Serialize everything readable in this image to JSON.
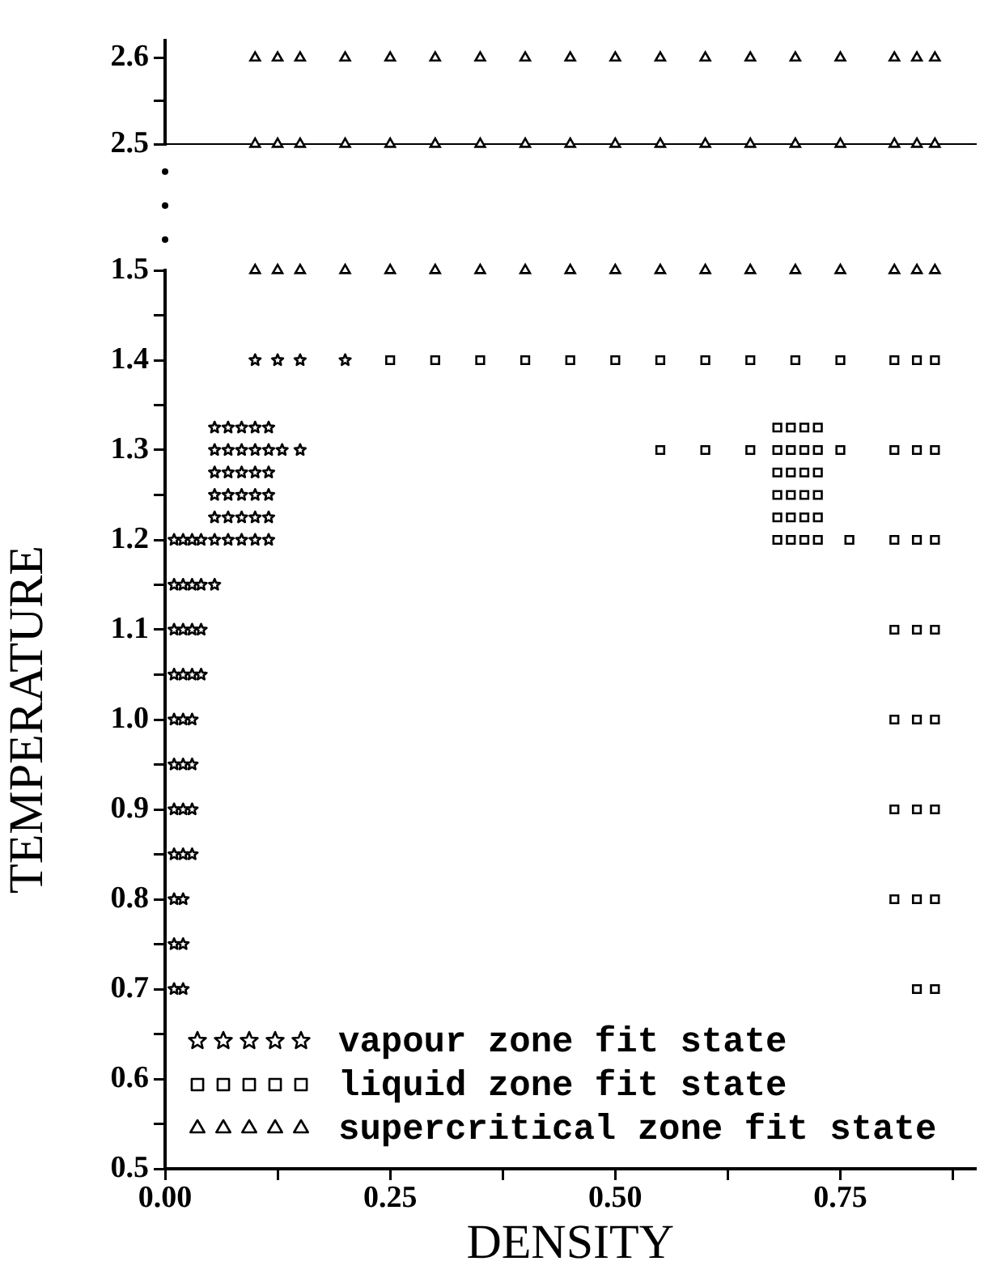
{
  "chart_data": [
    {
      "type": "scatter",
      "xlim": [
        0,
        0.9
      ],
      "ylim": [
        2.5,
        2.62
      ],
      "yticks": [
        2.5,
        {
          "value": 2.55,
          "label": null
        },
        2.6
      ],
      "tick_labels": "y",
      "grid": false,
      "series": [
        {
          "color": "#000000",
          "marker": "triangle",
          "x": [
            0.1,
            0.125,
            0.15,
            0.2,
            0.25,
            0.3,
            0.35,
            0.4,
            0.45,
            0.5,
            0.55,
            0.6,
            0.65,
            0.7,
            0.75,
            0.81,
            0.835,
            0.855,
            0.1,
            0.125,
            0.15,
            0.2,
            0.25,
            0.3,
            0.35,
            0.4,
            0.45,
            0.5,
            0.55,
            0.6,
            0.65,
            0.7,
            0.75,
            0.81,
            0.835,
            0.855
          ],
          "values": [
            2.6,
            2.6,
            2.6,
            2.6,
            2.6,
            2.6,
            2.6,
            2.6,
            2.6,
            2.6,
            2.6,
            2.6,
            2.6,
            2.6,
            2.6,
            2.6,
            2.6,
            2.6,
            2.5,
            2.5,
            2.5,
            2.5,
            2.5,
            2.5,
            2.5,
            2.5,
            2.5,
            2.5,
            2.5,
            2.5,
            2.5,
            2.5,
            2.5,
            2.5,
            2.5,
            2.5
          ]
        }
      ]
    },
    {
      "type": "scatter",
      "xlabel": "DENSITY",
      "ylabel": "TEMPERATURE",
      "xlim": [
        0,
        0.9
      ],
      "ylim": [
        0.5,
        1.5
      ],
      "xticks": [
        {
          "value": 0,
          "label": "0.00"
        },
        {
          "value": 0.125,
          "label": null
        },
        {
          "value": 0.25,
          "label": "0.25"
        },
        {
          "value": 0.375,
          "label": null
        },
        {
          "value": 0.5,
          "label": "0.50"
        },
        {
          "value": 0.625,
          "label": null
        },
        {
          "value": 0.75,
          "label": "0.75"
        },
        {
          "value": 0.875,
          "label": null
        }
      ],
      "yticks": [
        0.5,
        {
          "value": 0.55,
          "label": null
        },
        0.6,
        {
          "value": 0.65,
          "label": null
        },
        0.7,
        {
          "value": 0.75,
          "label": null
        },
        0.8,
        {
          "value": 0.85,
          "label": null
        },
        0.9,
        {
          "value": 0.95,
          "label": null
        },
        {
          "value": 1,
          "label": "1.0"
        },
        {
          "value": 1.05,
          "label": null
        },
        1.1,
        {
          "value": 1.15,
          "label": null
        },
        1.2,
        {
          "value": 1.25,
          "label": null
        },
        1.3,
        {
          "value": 1.35,
          "label": null
        },
        1.4,
        {
          "value": 1.45,
          "label": null
        },
        1.5
      ],
      "grid": false,
      "legend": "bottom left",
      "series": [
        {
          "name": "vapour zone fit state",
          "color": "#000000",
          "marker": "star",
          "x": [
            0.01,
            0.02,
            0.01,
            0.02,
            0.01,
            0.02,
            0.01,
            0.02,
            0.03,
            0.01,
            0.02,
            0.03,
            0.01,
            0.02,
            0.03,
            0.01,
            0.02,
            0.03,
            0.01,
            0.02,
            0.03,
            0.04,
            0.01,
            0.02,
            0.03,
            0.04,
            0.01,
            0.02,
            0.03,
            0.04,
            0.055,
            0.01,
            0.02,
            0.03,
            0.04,
            0.055,
            0.07,
            0.085,
            0.1,
            0.115,
            0.055,
            0.07,
            0.085,
            0.1,
            0.115,
            0.055,
            0.07,
            0.085,
            0.1,
            0.115,
            0.055,
            0.07,
            0.085,
            0.1,
            0.115,
            0.055,
            0.07,
            0.085,
            0.1,
            0.115,
            0.055,
            0.07,
            0.085,
            0.1,
            0.115,
            0.13,
            0.15,
            0.1,
            0.125,
            0.15,
            0.2
          ],
          "values": [
            0.7,
            0.7,
            0.75,
            0.75,
            0.8,
            0.8,
            0.85,
            0.85,
            0.85,
            0.9,
            0.9,
            0.9,
            0.95,
            0.95,
            0.95,
            1,
            1,
            1,
            1.05,
            1.05,
            1.05,
            1.05,
            1.1,
            1.1,
            1.1,
            1.1,
            1.15,
            1.15,
            1.15,
            1.15,
            1.15,
            1.2,
            1.2,
            1.2,
            1.2,
            1.2,
            1.2,
            1.2,
            1.2,
            1.2,
            1.225,
            1.225,
            1.225,
            1.225,
            1.225,
            1.25,
            1.25,
            1.25,
            1.25,
            1.25,
            1.275,
            1.275,
            1.275,
            1.275,
            1.275,
            1.3,
            1.3,
            1.3,
            1.3,
            1.3,
            1.325,
            1.325,
            1.325,
            1.325,
            1.325,
            1.3,
            1.3,
            1.4,
            1.4,
            1.4,
            1.4
          ]
        },
        {
          "name": "liquid zone fit state",
          "color": "#000000",
          "marker": "square",
          "x": [
            0.25,
            0.3,
            0.35,
            0.4,
            0.45,
            0.5,
            0.55,
            0.6,
            0.65,
            0.7,
            0.75,
            0.81,
            0.835,
            0.855,
            0.55,
            0.6,
            0.65,
            0.75,
            0.81,
            0.835,
            0.855,
            0.68,
            0.695,
            0.71,
            0.725,
            0.68,
            0.695,
            0.71,
            0.725,
            0.68,
            0.695,
            0.71,
            0.725,
            0.68,
            0.695,
            0.71,
            0.725,
            0.68,
            0.695,
            0.71,
            0.725,
            0.68,
            0.695,
            0.71,
            0.725,
            0.76,
            0.81,
            0.835,
            0.855,
            0.81,
            0.835,
            0.855,
            0.81,
            0.835,
            0.855,
            0.81,
            0.835,
            0.855,
            0.81,
            0.835,
            0.855,
            0.835,
            0.855
          ],
          "values": [
            1.4,
            1.4,
            1.4,
            1.4,
            1.4,
            1.4,
            1.4,
            1.4,
            1.4,
            1.4,
            1.4,
            1.4,
            1.4,
            1.4,
            1.3,
            1.3,
            1.3,
            1.3,
            1.3,
            1.3,
            1.3,
            1.2,
            1.2,
            1.2,
            1.2,
            1.225,
            1.225,
            1.225,
            1.225,
            1.25,
            1.25,
            1.25,
            1.25,
            1.275,
            1.275,
            1.275,
            1.275,
            1.3,
            1.3,
            1.3,
            1.3,
            1.325,
            1.325,
            1.325,
            1.325,
            1.2,
            1.2,
            1.2,
            1.2,
            1.1,
            1.1,
            1.1,
            1,
            1,
            1,
            0.9,
            0.9,
            0.9,
            0.8,
            0.8,
            0.8,
            0.7,
            0.7
          ]
        },
        {
          "name": "supercritical zone fit state",
          "color": "#000000",
          "marker": "triangle",
          "x": [
            0.1,
            0.125,
            0.15,
            0.2,
            0.25,
            0.3,
            0.35,
            0.4,
            0.45,
            0.5,
            0.55,
            0.6,
            0.65,
            0.7,
            0.75,
            0.81,
            0.835,
            0.855
          ],
          "values": [
            1.5,
            1.5,
            1.5,
            1.5,
            1.5,
            1.5,
            1.5,
            1.5,
            1.5,
            1.5,
            1.5,
            1.5,
            1.5,
            1.5,
            1.5,
            1.5,
            1.5,
            1.5
          ]
        }
      ]
    }
  ]
}
